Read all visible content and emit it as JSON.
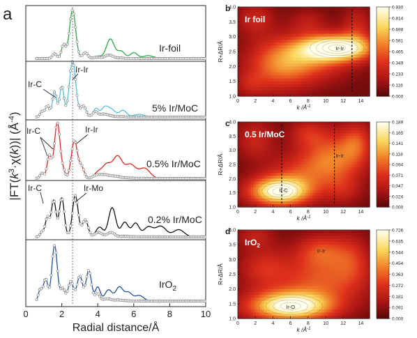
{
  "chart_data": [
    {
      "type": "line",
      "panel_label": "a",
      "xlabel": "Radial distance/Å",
      "ylabel_parts": [
        "|FT(",
        "k",
        "3",
        "·χ(",
        "k",
        "))| (Å",
        "-4",
        ")"
      ],
      "xlim": [
        0,
        10
      ],
      "xticks": [
        "0",
        "2",
        "4",
        "6",
        "8",
        "10"
      ],
      "reference_line_x": 2.6,
      "traces": [
        {
          "name": "Ir-foil",
          "color": "#2aa84a",
          "peaks": [
            [
              1.6,
              0.1,
              0.12
            ],
            [
              2.1,
              0.28,
              0.12
            ],
            [
              2.6,
              1.0,
              0.17
            ],
            [
              3.3,
              0.12,
              0.14
            ],
            [
              4.0,
              0.05,
              0.2
            ],
            [
              4.7,
              0.4,
              0.22
            ],
            [
              5.3,
              0.15,
              0.2
            ],
            [
              6.0,
              0.12,
              0.2
            ],
            [
              6.8,
              0.06,
              0.3
            ]
          ]
        },
        {
          "name": "5% Ir/MoC",
          "color": "#4fc1dc",
          "peaks": [
            [
              0.9,
              0.1,
              0.1
            ],
            [
              1.2,
              0.2,
              0.12
            ],
            [
              1.6,
              0.45,
              0.12
            ],
            [
              2.0,
              0.55,
              0.12
            ],
            [
              2.6,
              1.0,
              0.18
            ],
            [
              3.2,
              0.2,
              0.15
            ],
            [
              3.9,
              0.15,
              0.15
            ],
            [
              4.4,
              0.18,
              0.2
            ],
            [
              4.8,
              0.12,
              0.2
            ],
            [
              5.4,
              0.12,
              0.2
            ],
            [
              6.3,
              0.05,
              0.3
            ]
          ]
        },
        {
          "name": "0.5% Ir/MoC",
          "color": "#e0241f",
          "peaks": [
            [
              0.9,
              0.1,
              0.1
            ],
            [
              1.3,
              0.4,
              0.12
            ],
            [
              1.75,
              1.0,
              0.16
            ],
            [
              2.1,
              0.1,
              0.1
            ],
            [
              2.7,
              0.68,
              0.17
            ],
            [
              3.1,
              0.2,
              0.14
            ],
            [
              4.0,
              0.1,
              0.2
            ],
            [
              4.5,
              0.25,
              0.25
            ],
            [
              5.1,
              0.38,
              0.25
            ],
            [
              5.8,
              0.25,
              0.3
            ],
            [
              6.6,
              0.18,
              0.3
            ]
          ]
        },
        {
          "name": "0.2% Ir/MoC",
          "color": "#111111",
          "peaks": [
            [
              0.9,
              0.1,
              0.1
            ],
            [
              1.2,
              0.4,
              0.12
            ],
            [
              1.55,
              0.75,
              0.13
            ],
            [
              2.0,
              0.8,
              0.14
            ],
            [
              2.75,
              0.85,
              0.16
            ],
            [
              3.3,
              0.35,
              0.16
            ],
            [
              4.1,
              0.2,
              0.2
            ],
            [
              4.8,
              0.6,
              0.2
            ],
            [
              5.5,
              0.3,
              0.2
            ],
            [
              6.1,
              0.28,
              0.2
            ],
            [
              6.8,
              0.2,
              0.25
            ],
            [
              7.5,
              0.22,
              0.3
            ],
            [
              8.5,
              0.15,
              0.3
            ]
          ]
        },
        {
          "name": "IrO",
          "name_sub": "2",
          "color": "#1f4f97",
          "peaks": [
            [
              0.8,
              0.2,
              0.1
            ],
            [
              1.1,
              0.4,
              0.12
            ],
            [
              1.6,
              1.0,
              0.15
            ],
            [
              2.05,
              0.22,
              0.12
            ],
            [
              2.5,
              0.35,
              0.15
            ],
            [
              3.0,
              0.45,
              0.15
            ],
            [
              3.5,
              0.55,
              0.15
            ],
            [
              4.0,
              0.25,
              0.14
            ],
            [
              4.6,
              0.2,
              0.2
            ],
            [
              5.2,
              0.25,
              0.2
            ],
            [
              5.7,
              0.15,
              0.2
            ],
            [
              6.3,
              0.1,
              0.25
            ]
          ]
        }
      ],
      "annotations": [
        {
          "text": "Ir-Ir",
          "trace": 1
        },
        {
          "text": "Ir-C",
          "trace": 1
        },
        {
          "text": "Ir-C",
          "trace": 2
        },
        {
          "text": "Ir-Ir",
          "trace": 2
        },
        {
          "text": "Ir-C",
          "trace": 3
        },
        {
          "text": "Ir-Mo",
          "trace": 3
        }
      ]
    },
    {
      "type": "heatmap",
      "panel_label": "b",
      "title": "Ir foil",
      "xlabel": "k /Å",
      "xlabel_sup": "-1",
      "ylabel": "R+ΔR/Å",
      "xlim": [
        0,
        15
      ],
      "ylim": [
        1.0,
        4.0
      ],
      "xticks": [
        "0",
        "2",
        "4",
        "6",
        "8",
        "10",
        "12",
        "14"
      ],
      "yticks": [
        "1.0",
        "1.5",
        "2.0",
        "2.5",
        "3.0",
        "3.5",
        "4.0"
      ],
      "colorbar_ticks": [
        "0.930",
        "0.814",
        "0.698",
        "0.581",
        "0.465",
        "0.349",
        "0.233",
        "0.116",
        "0.000"
      ],
      "annotations": [
        {
          "text": "Ir-Ir",
          "k": 11.6,
          "r": 2.62
        }
      ],
      "dashed_k": 13.0,
      "blobs": [
        [
          11.3,
          2.62,
          2.8,
          0.3,
          1.0
        ],
        [
          7.5,
          2.25,
          3.5,
          0.55,
          0.45
        ],
        [
          4.5,
          1.95,
          2.5,
          0.6,
          0.3
        ],
        [
          2.0,
          3.6,
          1.5,
          0.4,
          0.25
        ],
        [
          13.5,
          3.3,
          1.2,
          0.5,
          0.25
        ],
        [
          8.0,
          3.5,
          1.5,
          0.3,
          0.18
        ],
        [
          1.5,
          1.4,
          1.2,
          0.3,
          0.18
        ]
      ]
    },
    {
      "type": "heatmap",
      "panel_label": "c",
      "title": "0.5 Ir/MoC",
      "xlabel": "k /Å",
      "xlabel_sup": "-1",
      "ylabel": "R+ΔR/Å",
      "xlim": [
        0,
        15
      ],
      "ylim": [
        1.0,
        4.0
      ],
      "xticks": [
        "0",
        "2",
        "4",
        "6",
        "8",
        "10",
        "12",
        "14"
      ],
      "yticks": [
        "1.0",
        "1.5",
        "2.0",
        "2.5",
        "3.0",
        "3.5",
        "4.0"
      ],
      "colorbar_ticks": [
        "0.189",
        "0.165",
        "0.141",
        "0.118",
        "0.094",
        "0.071",
        "0.047",
        "0.024",
        "0.000"
      ],
      "annotations": [
        {
          "text": "Ir-C",
          "k": 5.2,
          "r": 1.6
        },
        {
          "text": "Ir-Ir",
          "k": 11.6,
          "r": 2.82
        }
      ],
      "dashed_k": [
        5.0,
        11.0
      ],
      "blobs": [
        [
          4.8,
          1.55,
          2.4,
          0.35,
          1.0
        ],
        [
          11.0,
          2.8,
          2.5,
          0.6,
          0.45
        ],
        [
          7.5,
          2.2,
          3.0,
          0.5,
          0.3
        ],
        [
          2.0,
          3.4,
          1.5,
          0.5,
          0.25
        ],
        [
          13.5,
          3.3,
          1.2,
          0.5,
          0.3
        ],
        [
          8.0,
          3.6,
          1.5,
          0.35,
          0.25
        ],
        [
          12.0,
          1.6,
          1.5,
          0.4,
          0.2
        ]
      ]
    },
    {
      "type": "heatmap",
      "panel_label": "d",
      "title": "IrO",
      "title_sub": "2",
      "xlabel": "k /Å",
      "xlabel_sup": "-1",
      "ylabel": "R+ΔR/Å",
      "xlim": [
        0,
        15
      ],
      "ylim": [
        1.0,
        4.0
      ],
      "xticks": [
        "0",
        "2",
        "4",
        "6",
        "8",
        "10",
        "12",
        "14"
      ],
      "yticks": [
        "1.0",
        "1.5",
        "2.0",
        "2.5",
        "3.0",
        "3.5",
        "4.0"
      ],
      "colorbar_ticks": [
        "0.726",
        "0.635",
        "0.544",
        "0.454",
        "0.363",
        "0.272",
        "0.181",
        "0.091",
        "0.000"
      ],
      "annotations": [
        {
          "text": "Ir-O",
          "k": 6.0,
          "r": 1.4
        },
        {
          "text": "Ir-Ir",
          "k": 9.5,
          "r": 3.3
        }
      ],
      "blobs": [
        [
          6.0,
          1.42,
          3.3,
          0.35,
          1.0
        ],
        [
          9.5,
          2.3,
          3.5,
          0.6,
          0.4
        ],
        [
          9.5,
          3.3,
          2.0,
          0.4,
          0.35
        ],
        [
          3.0,
          2.7,
          2.0,
          0.5,
          0.28
        ],
        [
          13.0,
          3.0,
          1.5,
          0.6,
          0.25
        ],
        [
          2.0,
          3.8,
          1.5,
          0.3,
          0.2
        ]
      ]
    }
  ]
}
